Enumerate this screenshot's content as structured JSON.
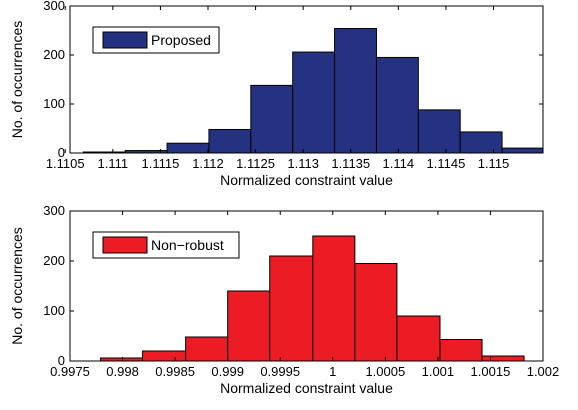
{
  "chart_data": [
    {
      "type": "bar",
      "xlabel": "Normalized constraint value",
      "ylabel": "No. of occurrences",
      "xlim": [
        1.11055,
        1.11552
      ],
      "ylim": [
        0,
        300
      ],
      "xticks": [
        1.1105,
        1.111,
        1.1115,
        1.112,
        1.1125,
        1.113,
        1.1135,
        1.114,
        1.1145,
        1.115
      ],
      "xtick_labels": [
        "1.1105",
        "1.111",
        "1.1115",
        "1.112",
        "1.1125",
        "1.113",
        "1.1135",
        "1.114",
        "1.1145",
        "1.115"
      ],
      "yticks": [
        0,
        100,
        200,
        300
      ],
      "ytick_labels": [
        "0",
        "100",
        "200",
        "300"
      ],
      "bin_edges": [
        1.11069,
        1.11113,
        1.11157,
        1.11201,
        1.11245,
        1.11289,
        1.11333,
        1.11377,
        1.11421,
        1.11465,
        1.11509,
        1.11552
      ],
      "values": [
        2,
        5,
        20,
        48,
        138,
        206,
        254,
        195,
        88,
        43,
        10
      ],
      "series": [
        {
          "name": "Proposed",
          "color": "#253282"
        }
      ],
      "legend": {
        "label": "Proposed",
        "placement": "top-left"
      },
      "grid": false
    },
    {
      "type": "bar",
      "xlabel": "Normalized constraint value",
      "ylabel": "No. of occurrences",
      "xlim": [
        0.9975,
        1.002
      ],
      "ylim": [
        0,
        300
      ],
      "xticks": [
        0.9975,
        0.998,
        0.9985,
        0.999,
        0.9995,
        1,
        1.0005,
        1.001,
        1.0015,
        1.002
      ],
      "xtick_labels": [
        "0.9975",
        "0.998",
        "0.9985",
        "0.999",
        "0.9995",
        "1",
        "1.0005",
        "1.001",
        "1.0015",
        "1.002"
      ],
      "yticks": [
        0,
        100,
        200,
        300
      ],
      "ytick_labels": [
        "0",
        "100",
        "200",
        "300"
      ],
      "bin_edges": [
        0.99779,
        0.99819,
        0.9986,
        0.999,
        0.9994,
        0.99981,
        1.00021,
        1.00061,
        1.00102,
        1.00142,
        1.00182
      ],
      "values": [
        6,
        20,
        48,
        140,
        210,
        250,
        195,
        90,
        43,
        10
      ],
      "series": [
        {
          "name": "Non−robust",
          "color": "#ec1c24"
        }
      ],
      "legend": {
        "label": "Non−robust",
        "placement": "top-left"
      },
      "grid": false
    }
  ]
}
